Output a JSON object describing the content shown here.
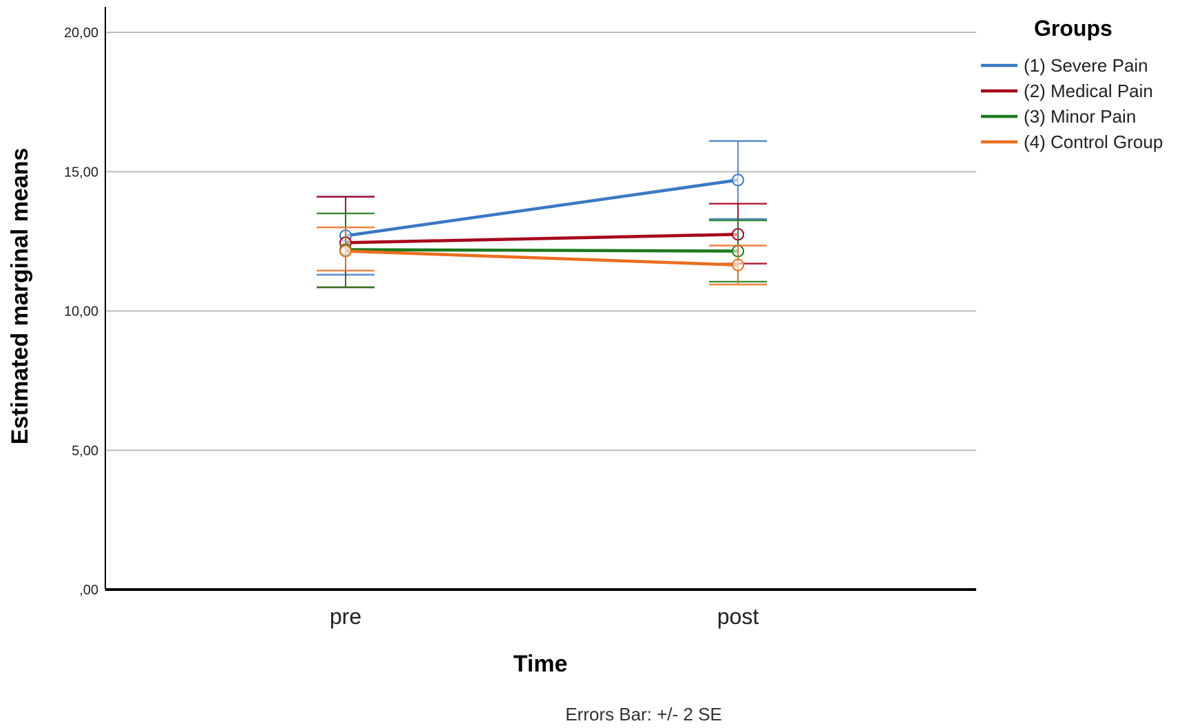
{
  "chart_data": {
    "type": "line",
    "categories": [
      "pre",
      "post"
    ],
    "xlabel": "Time",
    "ylabel": "Estimated marginal means",
    "ylim": [
      0,
      20
    ],
    "yticks": [
      0,
      5,
      10,
      15,
      20
    ],
    "ytick_labels": [
      ",00",
      "5,00",
      "10,00",
      "15,00",
      "20,00"
    ],
    "grid": true,
    "legend": {
      "title": "Groups",
      "placement": "top-right"
    },
    "series": [
      {
        "name": "(1) Severe Pain",
        "color": "#3a78c3",
        "values": [
          12.7,
          14.7
        ],
        "lower": [
          11.3,
          13.3
        ],
        "upper": [
          14.1,
          16.1
        ]
      },
      {
        "name": "(2) Medical Pain",
        "color": "#a5001c",
        "values": [
          12.45,
          12.75
        ],
        "lower": [
          10.85,
          11.7
        ],
        "upper": [
          14.1,
          13.85
        ]
      },
      {
        "name": "(3) Minor Pain",
        "color": "#1d7a1d",
        "values": [
          12.2,
          12.15
        ],
        "lower": [
          10.85,
          11.05
        ],
        "upper": [
          13.5,
          13.25
        ]
      },
      {
        "name": "(4) Control Group",
        "color": "#ea6e1f",
        "values": [
          12.15,
          11.65
        ],
        "lower": [
          11.45,
          10.95
        ],
        "upper": [
          13.0,
          12.35
        ]
      }
    ],
    "note": "Errors Bar: +/- 2 SE"
  }
}
